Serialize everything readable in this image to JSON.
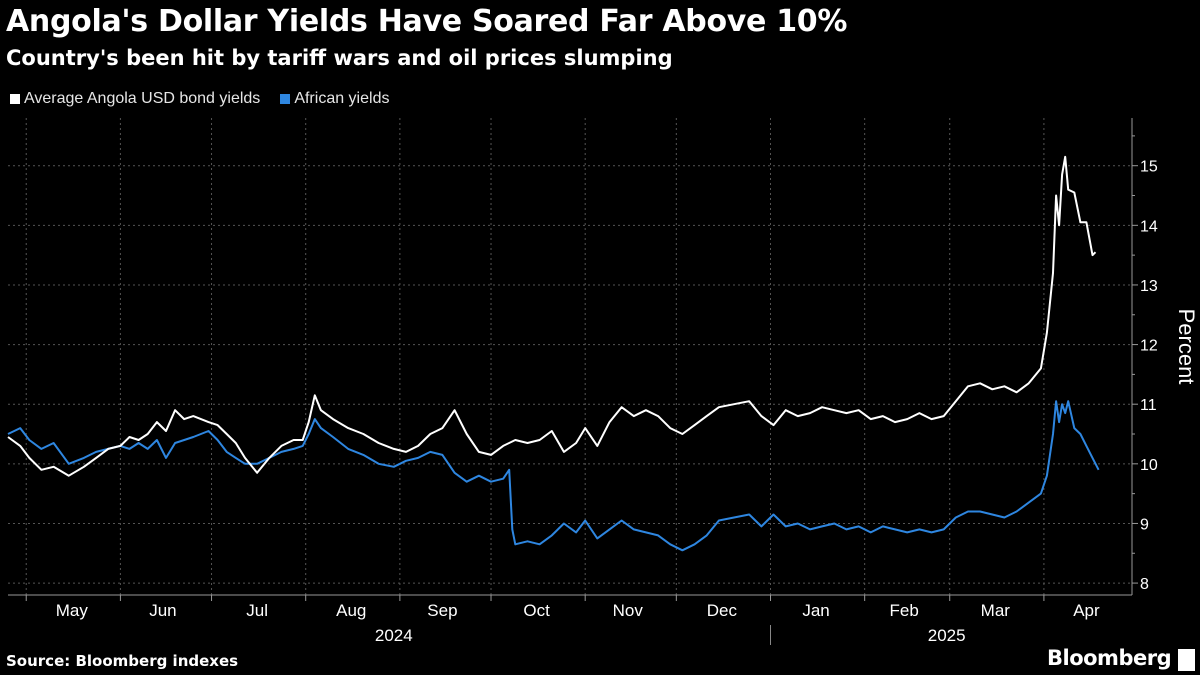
{
  "header": {
    "title": "Angola's Dollar Yields Have Soared Far Above 10%",
    "subtitle": "Country's been hit by tariff wars and oil prices slumping"
  },
  "legend": [
    {
      "label": "Average Angola USD bond yields",
      "color": "#ffffff"
    },
    {
      "label": "African yields",
      "color": "#2e86e0"
    }
  ],
  "footer": {
    "source": "Source: Bloomberg indexes",
    "brand": "Bloomberg"
  },
  "chart_data": {
    "type": "line",
    "ylabel": "Percent",
    "ylim": [
      7.8,
      15.8
    ],
    "yticks": [
      8,
      9,
      10,
      11,
      12,
      13,
      14,
      15
    ],
    "xlim": [
      "2024-04-25",
      "2025-04-30"
    ],
    "x_months": [
      {
        "label": "May",
        "date": "2024-05-16"
      },
      {
        "label": "Jun",
        "date": "2024-06-15"
      },
      {
        "label": "Jul",
        "date": "2024-07-16"
      },
      {
        "label": "Aug",
        "date": "2024-08-16"
      },
      {
        "label": "Sep",
        "date": "2024-09-15"
      },
      {
        "label": "Oct",
        "date": "2024-10-16"
      },
      {
        "label": "Nov",
        "date": "2024-11-15"
      },
      {
        "label": "Dec",
        "date": "2024-12-16"
      },
      {
        "label": "Jan",
        "date": "2025-01-16"
      },
      {
        "label": "Feb",
        "date": "2025-02-14"
      },
      {
        "label": "Mar",
        "date": "2025-03-16"
      },
      {
        "label": "Apr",
        "date": "2025-04-15"
      }
    ],
    "month_boundaries": [
      "2024-05-01",
      "2024-06-01",
      "2024-07-01",
      "2024-08-01",
      "2024-09-01",
      "2024-10-01",
      "2024-11-01",
      "2024-12-01",
      "2025-01-01",
      "2025-02-01",
      "2025-03-01",
      "2025-04-01"
    ],
    "years": [
      {
        "label": "2024",
        "date": "2024-08-30"
      },
      {
        "label": "2025",
        "date": "2025-02-28"
      }
    ],
    "year_divider": "2025-01-01",
    "series": [
      {
        "name": "Average Angola USD bond yields",
        "color": "#ffffff",
        "points": [
          [
            "2024-04-25",
            10.45
          ],
          [
            "2024-04-29",
            10.3
          ],
          [
            "2024-05-02",
            10.1
          ],
          [
            "2024-05-06",
            9.9
          ],
          [
            "2024-05-10",
            9.95
          ],
          [
            "2024-05-15",
            9.8
          ],
          [
            "2024-05-20",
            9.95
          ],
          [
            "2024-05-24",
            10.1
          ],
          [
            "2024-05-28",
            10.25
          ],
          [
            "2024-06-01",
            10.3
          ],
          [
            "2024-06-04",
            10.45
          ],
          [
            "2024-06-07",
            10.4
          ],
          [
            "2024-06-10",
            10.5
          ],
          [
            "2024-06-13",
            10.7
          ],
          [
            "2024-06-16",
            10.55
          ],
          [
            "2024-06-19",
            10.9
          ],
          [
            "2024-06-22",
            10.75
          ],
          [
            "2024-06-25",
            10.8
          ],
          [
            "2024-06-30",
            10.7
          ],
          [
            "2024-07-03",
            10.65
          ],
          [
            "2024-07-06",
            10.5
          ],
          [
            "2024-07-09",
            10.35
          ],
          [
            "2024-07-12",
            10.1
          ],
          [
            "2024-07-16",
            9.85
          ],
          [
            "2024-07-20",
            10.1
          ],
          [
            "2024-07-24",
            10.3
          ],
          [
            "2024-07-28",
            10.4
          ],
          [
            "2024-07-31",
            10.4
          ],
          [
            "2024-08-02",
            10.7
          ],
          [
            "2024-08-04",
            11.15
          ],
          [
            "2024-08-06",
            10.9
          ],
          [
            "2024-08-10",
            10.75
          ],
          [
            "2024-08-15",
            10.6
          ],
          [
            "2024-08-20",
            10.5
          ],
          [
            "2024-08-25",
            10.35
          ],
          [
            "2024-08-30",
            10.25
          ],
          [
            "2024-09-03",
            10.2
          ],
          [
            "2024-09-07",
            10.3
          ],
          [
            "2024-09-11",
            10.5
          ],
          [
            "2024-09-15",
            10.6
          ],
          [
            "2024-09-19",
            10.9
          ],
          [
            "2024-09-23",
            10.5
          ],
          [
            "2024-09-27",
            10.2
          ],
          [
            "2024-10-01",
            10.15
          ],
          [
            "2024-10-05",
            10.3
          ],
          [
            "2024-10-09",
            10.4
          ],
          [
            "2024-10-13",
            10.35
          ],
          [
            "2024-10-17",
            10.4
          ],
          [
            "2024-10-21",
            10.55
          ],
          [
            "2024-10-25",
            10.2
          ],
          [
            "2024-10-29",
            10.35
          ],
          [
            "2024-11-01",
            10.6
          ],
          [
            "2024-11-05",
            10.3
          ],
          [
            "2024-11-09",
            10.7
          ],
          [
            "2024-11-13",
            10.95
          ],
          [
            "2024-11-17",
            10.8
          ],
          [
            "2024-11-21",
            10.9
          ],
          [
            "2024-11-25",
            10.8
          ],
          [
            "2024-11-29",
            10.6
          ],
          [
            "2024-12-03",
            10.5
          ],
          [
            "2024-12-07",
            10.65
          ],
          [
            "2024-12-11",
            10.8
          ],
          [
            "2024-12-15",
            10.95
          ],
          [
            "2024-12-20",
            11.0
          ],
          [
            "2024-12-25",
            11.05
          ],
          [
            "2024-12-29",
            10.8
          ],
          [
            "2025-01-02",
            10.65
          ],
          [
            "2025-01-06",
            10.9
          ],
          [
            "2025-01-10",
            10.8
          ],
          [
            "2025-01-14",
            10.85
          ],
          [
            "2025-01-18",
            10.95
          ],
          [
            "2025-01-22",
            10.9
          ],
          [
            "2025-01-26",
            10.85
          ],
          [
            "2025-01-30",
            10.9
          ],
          [
            "2025-02-03",
            10.75
          ],
          [
            "2025-02-07",
            10.8
          ],
          [
            "2025-02-11",
            10.7
          ],
          [
            "2025-02-15",
            10.75
          ],
          [
            "2025-02-19",
            10.85
          ],
          [
            "2025-02-23",
            10.75
          ],
          [
            "2025-02-27",
            10.8
          ],
          [
            "2025-03-03",
            11.05
          ],
          [
            "2025-03-07",
            11.3
          ],
          [
            "2025-03-11",
            11.35
          ],
          [
            "2025-03-15",
            11.25
          ],
          [
            "2025-03-19",
            11.3
          ],
          [
            "2025-03-23",
            11.2
          ],
          [
            "2025-03-27",
            11.35
          ],
          [
            "2025-03-31",
            11.6
          ],
          [
            "2025-04-02",
            12.2
          ],
          [
            "2025-04-04",
            13.2
          ],
          [
            "2025-04-05",
            14.5
          ],
          [
            "2025-04-06",
            14.0
          ],
          [
            "2025-04-07",
            14.85
          ],
          [
            "2025-04-08",
            15.15
          ],
          [
            "2025-04-09",
            14.6
          ],
          [
            "2025-04-11",
            14.55
          ],
          [
            "2025-04-13",
            14.05
          ],
          [
            "2025-04-15",
            14.05
          ],
          [
            "2025-04-17",
            13.5
          ],
          [
            "2025-04-18",
            13.55
          ]
        ]
      },
      {
        "name": "African yields",
        "color": "#2e86e0",
        "points": [
          [
            "2024-04-25",
            10.5
          ],
          [
            "2024-04-29",
            10.6
          ],
          [
            "2024-05-02",
            10.4
          ],
          [
            "2024-05-06",
            10.25
          ],
          [
            "2024-05-10",
            10.35
          ],
          [
            "2024-05-15",
            10.0
          ],
          [
            "2024-05-20",
            10.1
          ],
          [
            "2024-05-24",
            10.2
          ],
          [
            "2024-05-28",
            10.25
          ],
          [
            "2024-06-01",
            10.3
          ],
          [
            "2024-06-04",
            10.25
          ],
          [
            "2024-06-07",
            10.35
          ],
          [
            "2024-06-10",
            10.25
          ],
          [
            "2024-06-13",
            10.4
          ],
          [
            "2024-06-16",
            10.1
          ],
          [
            "2024-06-19",
            10.35
          ],
          [
            "2024-06-22",
            10.4
          ],
          [
            "2024-06-25",
            10.45
          ],
          [
            "2024-06-30",
            10.55
          ],
          [
            "2024-07-03",
            10.4
          ],
          [
            "2024-07-06",
            10.2
          ],
          [
            "2024-07-09",
            10.1
          ],
          [
            "2024-07-12",
            10.0
          ],
          [
            "2024-07-16",
            10.0
          ],
          [
            "2024-07-20",
            10.1
          ],
          [
            "2024-07-24",
            10.2
          ],
          [
            "2024-07-28",
            10.25
          ],
          [
            "2024-07-31",
            10.3
          ],
          [
            "2024-08-02",
            10.5
          ],
          [
            "2024-08-04",
            10.75
          ],
          [
            "2024-08-06",
            10.6
          ],
          [
            "2024-08-10",
            10.45
          ],
          [
            "2024-08-15",
            10.25
          ],
          [
            "2024-08-20",
            10.15
          ],
          [
            "2024-08-25",
            10.0
          ],
          [
            "2024-08-30",
            9.95
          ],
          [
            "2024-09-03",
            10.05
          ],
          [
            "2024-09-07",
            10.1
          ],
          [
            "2024-09-11",
            10.2
          ],
          [
            "2024-09-15",
            10.15
          ],
          [
            "2024-09-19",
            9.85
          ],
          [
            "2024-09-23",
            9.7
          ],
          [
            "2024-09-27",
            9.8
          ],
          [
            "2024-10-01",
            9.7
          ],
          [
            "2024-10-05",
            9.75
          ],
          [
            "2024-10-07",
            9.9
          ],
          [
            "2024-10-08",
            8.9
          ],
          [
            "2024-10-09",
            8.65
          ],
          [
            "2024-10-13",
            8.7
          ],
          [
            "2024-10-17",
            8.65
          ],
          [
            "2024-10-21",
            8.8
          ],
          [
            "2024-10-25",
            9.0
          ],
          [
            "2024-10-29",
            8.85
          ],
          [
            "2024-11-01",
            9.05
          ],
          [
            "2024-11-05",
            8.75
          ],
          [
            "2024-11-09",
            8.9
          ],
          [
            "2024-11-13",
            9.05
          ],
          [
            "2024-11-17",
            8.9
          ],
          [
            "2024-11-21",
            8.85
          ],
          [
            "2024-11-25",
            8.8
          ],
          [
            "2024-11-29",
            8.65
          ],
          [
            "2024-12-03",
            8.55
          ],
          [
            "2024-12-07",
            8.65
          ],
          [
            "2024-12-11",
            8.8
          ],
          [
            "2024-12-15",
            9.05
          ],
          [
            "2024-12-20",
            9.1
          ],
          [
            "2024-12-25",
            9.15
          ],
          [
            "2024-12-29",
            8.95
          ],
          [
            "2025-01-02",
            9.15
          ],
          [
            "2025-01-06",
            8.95
          ],
          [
            "2025-01-10",
            9.0
          ],
          [
            "2025-01-14",
            8.9
          ],
          [
            "2025-01-18",
            8.95
          ],
          [
            "2025-01-22",
            9.0
          ],
          [
            "2025-01-26",
            8.9
          ],
          [
            "2025-01-30",
            8.95
          ],
          [
            "2025-02-03",
            8.85
          ],
          [
            "2025-02-07",
            8.95
          ],
          [
            "2025-02-11",
            8.9
          ],
          [
            "2025-02-15",
            8.85
          ],
          [
            "2025-02-19",
            8.9
          ],
          [
            "2025-02-23",
            8.85
          ],
          [
            "2025-02-27",
            8.9
          ],
          [
            "2025-03-03",
            9.1
          ],
          [
            "2025-03-07",
            9.2
          ],
          [
            "2025-03-11",
            9.2
          ],
          [
            "2025-03-15",
            9.15
          ],
          [
            "2025-03-19",
            9.1
          ],
          [
            "2025-03-23",
            9.2
          ],
          [
            "2025-03-27",
            9.35
          ],
          [
            "2025-03-31",
            9.5
          ],
          [
            "2025-04-02",
            9.8
          ],
          [
            "2025-04-04",
            10.5
          ],
          [
            "2025-04-05",
            11.05
          ],
          [
            "2025-04-06",
            10.7
          ],
          [
            "2025-04-07",
            11.0
          ],
          [
            "2025-04-08",
            10.85
          ],
          [
            "2025-04-09",
            11.05
          ],
          [
            "2025-04-11",
            10.6
          ],
          [
            "2025-04-13",
            10.5
          ],
          [
            "2025-04-15",
            10.3
          ],
          [
            "2025-04-17",
            10.1
          ],
          [
            "2025-04-19",
            9.9
          ]
        ]
      }
    ],
    "grid": true,
    "legend_position": "top-left"
  }
}
